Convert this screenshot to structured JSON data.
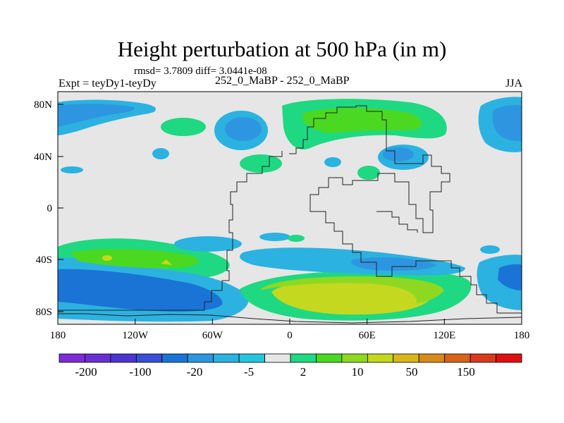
{
  "chart_data": {
    "type": "heatmap",
    "title": "Height perturbation at 500 hPa (in m)",
    "stats": "rmsd= 3.7809 diff= 3.0441e-08",
    "left_label": "Expt = teyDy1-teyDy",
    "center_label": "252_0_MaBP - 252_0_MaBP",
    "right_label": "JJA",
    "x_ticks": [
      "180",
      "120W",
      "60W",
      "0",
      "60E",
      "120E",
      "180"
    ],
    "y_ticks": [
      "80N",
      "40N",
      "0",
      "40S",
      "80S"
    ],
    "x_range": [
      -180,
      180
    ],
    "y_range": [
      -90,
      90
    ],
    "colorbar": {
      "colors": [
        "#7f2bd5",
        "#6a2fd3",
        "#4c34d1",
        "#3a4fd6",
        "#1a74d6",
        "#2e96e0",
        "#2bb2e1",
        "#25c5dd",
        "#e6e6e6",
        "#1fd882",
        "#4bd821",
        "#8ed822",
        "#c3d81f",
        "#d8b61c",
        "#d88a1a",
        "#d8641b",
        "#d83a1e",
        "#e01010"
      ],
      "labels": [
        "-200",
        "-100",
        "-20",
        "-5",
        "2",
        "10",
        "50",
        "150"
      ]
    }
  }
}
